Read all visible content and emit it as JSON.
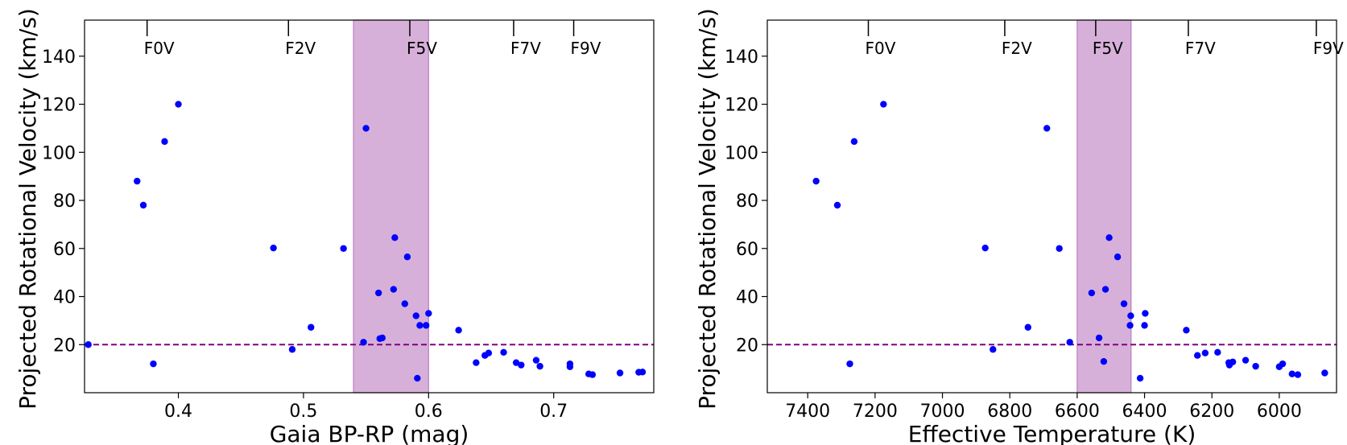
{
  "chart_data": [
    {
      "type": "scatter",
      "xlabel": "Gaia BP-RP (mag)",
      "ylabel": "Projected Rotational Velocity (km/s)",
      "xlim": [
        0.325,
        0.78
      ],
      "ylim": [
        0,
        155
      ],
      "x_ticks": [
        0.4,
        0.5,
        0.6,
        0.7
      ],
      "x_tick_labels": [
        "0.4",
        "0.5",
        "0.6",
        "0.7"
      ],
      "y_ticks": [
        20,
        40,
        60,
        80,
        100,
        120,
        140
      ],
      "y_tick_labels": [
        "20",
        "40",
        "60",
        "80",
        "100",
        "120",
        "140"
      ],
      "threshold_line": {
        "y": 20,
        "color": "#800080",
        "style": "dashed"
      },
      "shaded_band": {
        "x_from": 0.54,
        "x_to": 0.6,
        "color": "#d7b0da",
        "edge": "#b77fbf"
      },
      "spectral_markers": [
        {
          "label": "F0V",
          "x": 0.375
        },
        {
          "label": "F2V",
          "x": 0.488
        },
        {
          "label": "F5V",
          "x": 0.585
        },
        {
          "label": "F7V",
          "x": 0.668
        },
        {
          "label": "F9V",
          "x": 0.716
        }
      ],
      "point_color": "#0000ff",
      "points": [
        [
          0.328,
          20
        ],
        [
          0.367,
          88
        ],
        [
          0.372,
          78
        ],
        [
          0.38,
          12
        ],
        [
          0.389,
          104.5
        ],
        [
          0.4,
          120
        ],
        [
          0.476,
          60.2
        ],
        [
          0.491,
          18
        ],
        [
          0.506,
          27.2
        ],
        [
          0.532,
          60
        ],
        [
          0.548,
          21
        ],
        [
          0.55,
          110
        ],
        [
          0.56,
          41.5
        ],
        [
          0.561,
          22.5
        ],
        [
          0.563,
          22.8
        ],
        [
          0.572,
          43
        ],
        [
          0.573,
          64.5
        ],
        [
          0.581,
          37
        ],
        [
          0.583,
          56.5
        ],
        [
          0.59,
          32
        ],
        [
          0.591,
          6
        ],
        [
          0.593,
          28
        ],
        [
          0.598,
          28
        ],
        [
          0.6,
          33
        ],
        [
          0.624,
          26
        ],
        [
          0.638,
          12.5
        ],
        [
          0.645,
          15.5
        ],
        [
          0.648,
          16.5
        ],
        [
          0.66,
          16.8
        ],
        [
          0.67,
          12.5
        ],
        [
          0.674,
          11.5
        ],
        [
          0.686,
          13.5
        ],
        [
          0.689,
          11
        ],
        [
          0.713,
          12
        ],
        [
          0.713,
          10.8
        ],
        [
          0.728,
          7.8
        ],
        [
          0.731,
          7.5
        ],
        [
          0.753,
          8.2
        ],
        [
          0.768,
          8.5
        ],
        [
          0.771,
          8.6
        ]
      ]
    },
    {
      "type": "scatter",
      "xlabel": "Effective Temperature (K)",
      "ylabel": "Projected Rotational Velocity (km/s)",
      "xlim": [
        7520,
        5830
      ],
      "ylim": [
        0,
        155
      ],
      "x_ticks": [
        7400,
        7200,
        7000,
        6800,
        6600,
        6400,
        6200,
        6000
      ],
      "x_tick_labels": [
        "7400",
        "7200",
        "7000",
        "6800",
        "6600",
        "6400",
        "6200",
        "6000"
      ],
      "y_ticks": [
        20,
        40,
        60,
        80,
        100,
        120,
        140
      ],
      "y_tick_labels": [
        "20",
        "40",
        "60",
        "80",
        "100",
        "120",
        "140"
      ],
      "threshold_line": {
        "y": 20,
        "color": "#800080",
        "style": "dashed"
      },
      "shaded_band": {
        "x_from": 6600,
        "x_to": 6440,
        "color": "#d7b0da",
        "edge": "#b77fbf"
      },
      "spectral_markers": [
        {
          "label": "F0V",
          "x": 7220
        },
        {
          "label": "F2V",
          "x": 6815
        },
        {
          "label": "F5V",
          "x": 6545
        },
        {
          "label": "F7V",
          "x": 6270
        },
        {
          "label": "F9V",
          "x": 5890
        }
      ],
      "point_color": "#0000ff",
      "points": [
        [
          7375,
          88
        ],
        [
          7312,
          78
        ],
        [
          7275,
          12
        ],
        [
          7262,
          104.5
        ],
        [
          7175,
          120
        ],
        [
          6873,
          60.2
        ],
        [
          6850,
          18
        ],
        [
          6746,
          27.2
        ],
        [
          6690,
          110
        ],
        [
          6653,
          60
        ],
        [
          6622,
          21
        ],
        [
          6557,
          41.5
        ],
        [
          6535,
          22.8
        ],
        [
          6521,
          13
        ],
        [
          6516,
          43
        ],
        [
          6505,
          64.5
        ],
        [
          6480,
          56.5
        ],
        [
          6461,
          37
        ],
        [
          6443,
          28
        ],
        [
          6441,
          32
        ],
        [
          6413,
          6
        ],
        [
          6400,
          28
        ],
        [
          6398,
          33
        ],
        [
          6276,
          26
        ],
        [
          6243,
          15.5
        ],
        [
          6220,
          16.5
        ],
        [
          6183,
          16.8
        ],
        [
          6150,
          12.5
        ],
        [
          6148,
          11.5
        ],
        [
          6138,
          12.8
        ],
        [
          6100,
          13.5
        ],
        [
          6070,
          11
        ],
        [
          6000,
          10.8
        ],
        [
          5990,
          12
        ],
        [
          5962,
          7.8
        ],
        [
          5945,
          7.5
        ],
        [
          5865,
          8.2
        ]
      ]
    }
  ]
}
